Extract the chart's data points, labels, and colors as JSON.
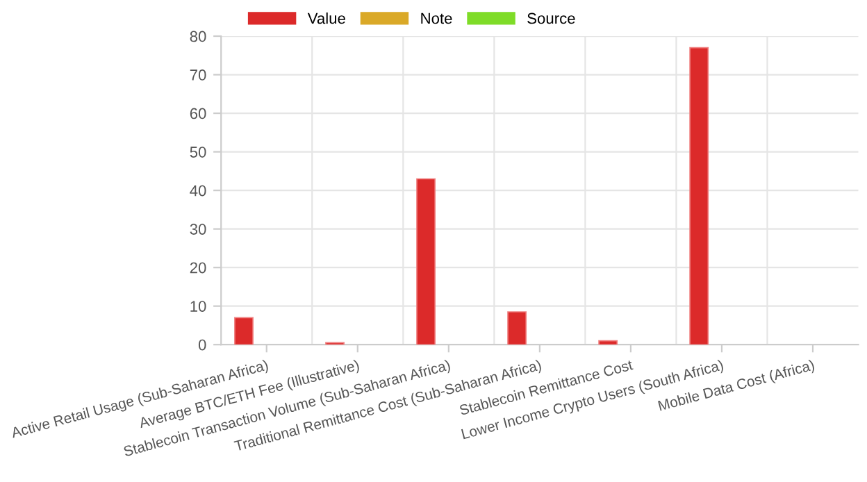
{
  "chart_data": {
    "type": "bar",
    "categories": [
      "Active Retail Usage (Sub-Saharan Africa)",
      "Average BTC/ETH Fee (Illustrative)",
      "Stablecoin Transaction Volume (Sub-Saharan Africa)",
      "Traditional Remittance Cost (Sub-Saharan Africa)",
      "Stablecoin Remittance Cost",
      "Lower Income Crypto Users (South Africa)",
      "Mobile Data Cost (Africa)"
    ],
    "series": [
      {
        "name": "Value",
        "color": "#dc2a2a",
        "values": [
          7,
          0.5,
          43,
          8.5,
          1,
          77,
          null
        ]
      },
      {
        "name": "Note",
        "color": "#daa928",
        "values": [
          null,
          null,
          null,
          null,
          null,
          null,
          null
        ]
      },
      {
        "name": "Source",
        "color": "#7fdc28",
        "values": [
          null,
          null,
          null,
          null,
          null,
          null,
          null
        ]
      }
    ],
    "ylim": [
      0,
      80
    ],
    "yticks": [
      0,
      10,
      20,
      30,
      40,
      50,
      60,
      70,
      80
    ],
    "grid": true,
    "legend": "top"
  }
}
